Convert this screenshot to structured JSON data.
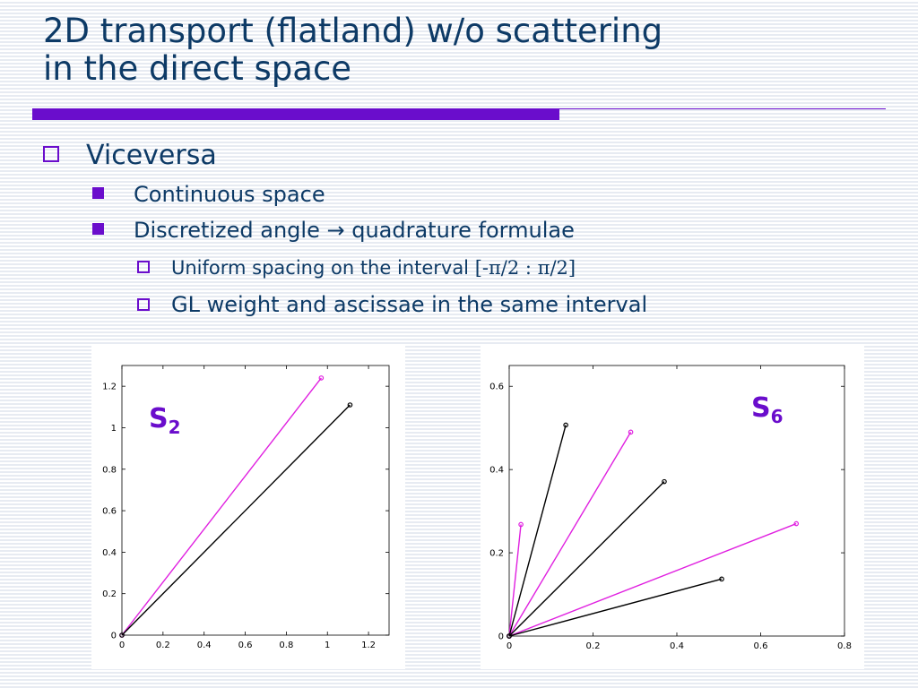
{
  "slide": {
    "title_line1": "2D transport (flatland) w/o scattering",
    "title_line2": "in the direct space",
    "accent_color": "#6a0dcc",
    "text_color": "#0d3a66"
  },
  "bullets": {
    "level1": "Viceversa",
    "level2_a": "Continuous space",
    "level2_b_pre": "Discretized angle ",
    "level2_b_arrow": "→",
    "level2_b_post": " quadrature formulae",
    "level3_a_pre": "Uniform spacing on the interval ",
    "level3_a_math": "[-π/2 : π/2]",
    "level3_b": "GL weight and ascissae in the same interval"
  },
  "chart_data": [
    {
      "type": "line",
      "label_main": "S",
      "label_sub": "2",
      "xlim": [
        0,
        1.3
      ],
      "ylim": [
        0,
        1.3
      ],
      "xticks": [
        "0",
        "0.2",
        "0.4",
        "0.6",
        "0.8",
        "1",
        "1.2"
      ],
      "yticks": [
        "0",
        "0.2",
        "0.4",
        "0.6",
        "0.8",
        "1",
        "1.2"
      ],
      "series": [
        {
          "color": "#e020e0",
          "x": [
            0,
            0.97
          ],
          "y": [
            0,
            1.24
          ]
        },
        {
          "color": "#000000",
          "x": [
            0,
            1.11
          ],
          "y": [
            0,
            1.11
          ]
        }
      ]
    },
    {
      "type": "line",
      "label_main": "S",
      "label_sub": "6",
      "xlim": [
        0,
        0.8
      ],
      "ylim": [
        0,
        0.65
      ],
      "xticks": [
        "0",
        "0.2",
        "0.4",
        "0.6",
        "0.8"
      ],
      "yticks": [
        "0",
        "0.2",
        "0.4",
        "0.6"
      ],
      "series": [
        {
          "color": "#e020e0",
          "x": [
            0,
            0.028
          ],
          "y": [
            0,
            0.268
          ]
        },
        {
          "color": "#e020e0",
          "x": [
            0,
            0.29
          ],
          "y": [
            0,
            0.49
          ]
        },
        {
          "color": "#e020e0",
          "x": [
            0,
            0.685
          ],
          "y": [
            0,
            0.27
          ]
        },
        {
          "color": "#000000",
          "x": [
            0,
            0.135
          ],
          "y": [
            0,
            0.507
          ]
        },
        {
          "color": "#000000",
          "x": [
            0,
            0.37
          ],
          "y": [
            0,
            0.371
          ]
        },
        {
          "color": "#000000",
          "x": [
            0,
            0.507
          ],
          "y": [
            0,
            0.137
          ]
        }
      ]
    }
  ]
}
